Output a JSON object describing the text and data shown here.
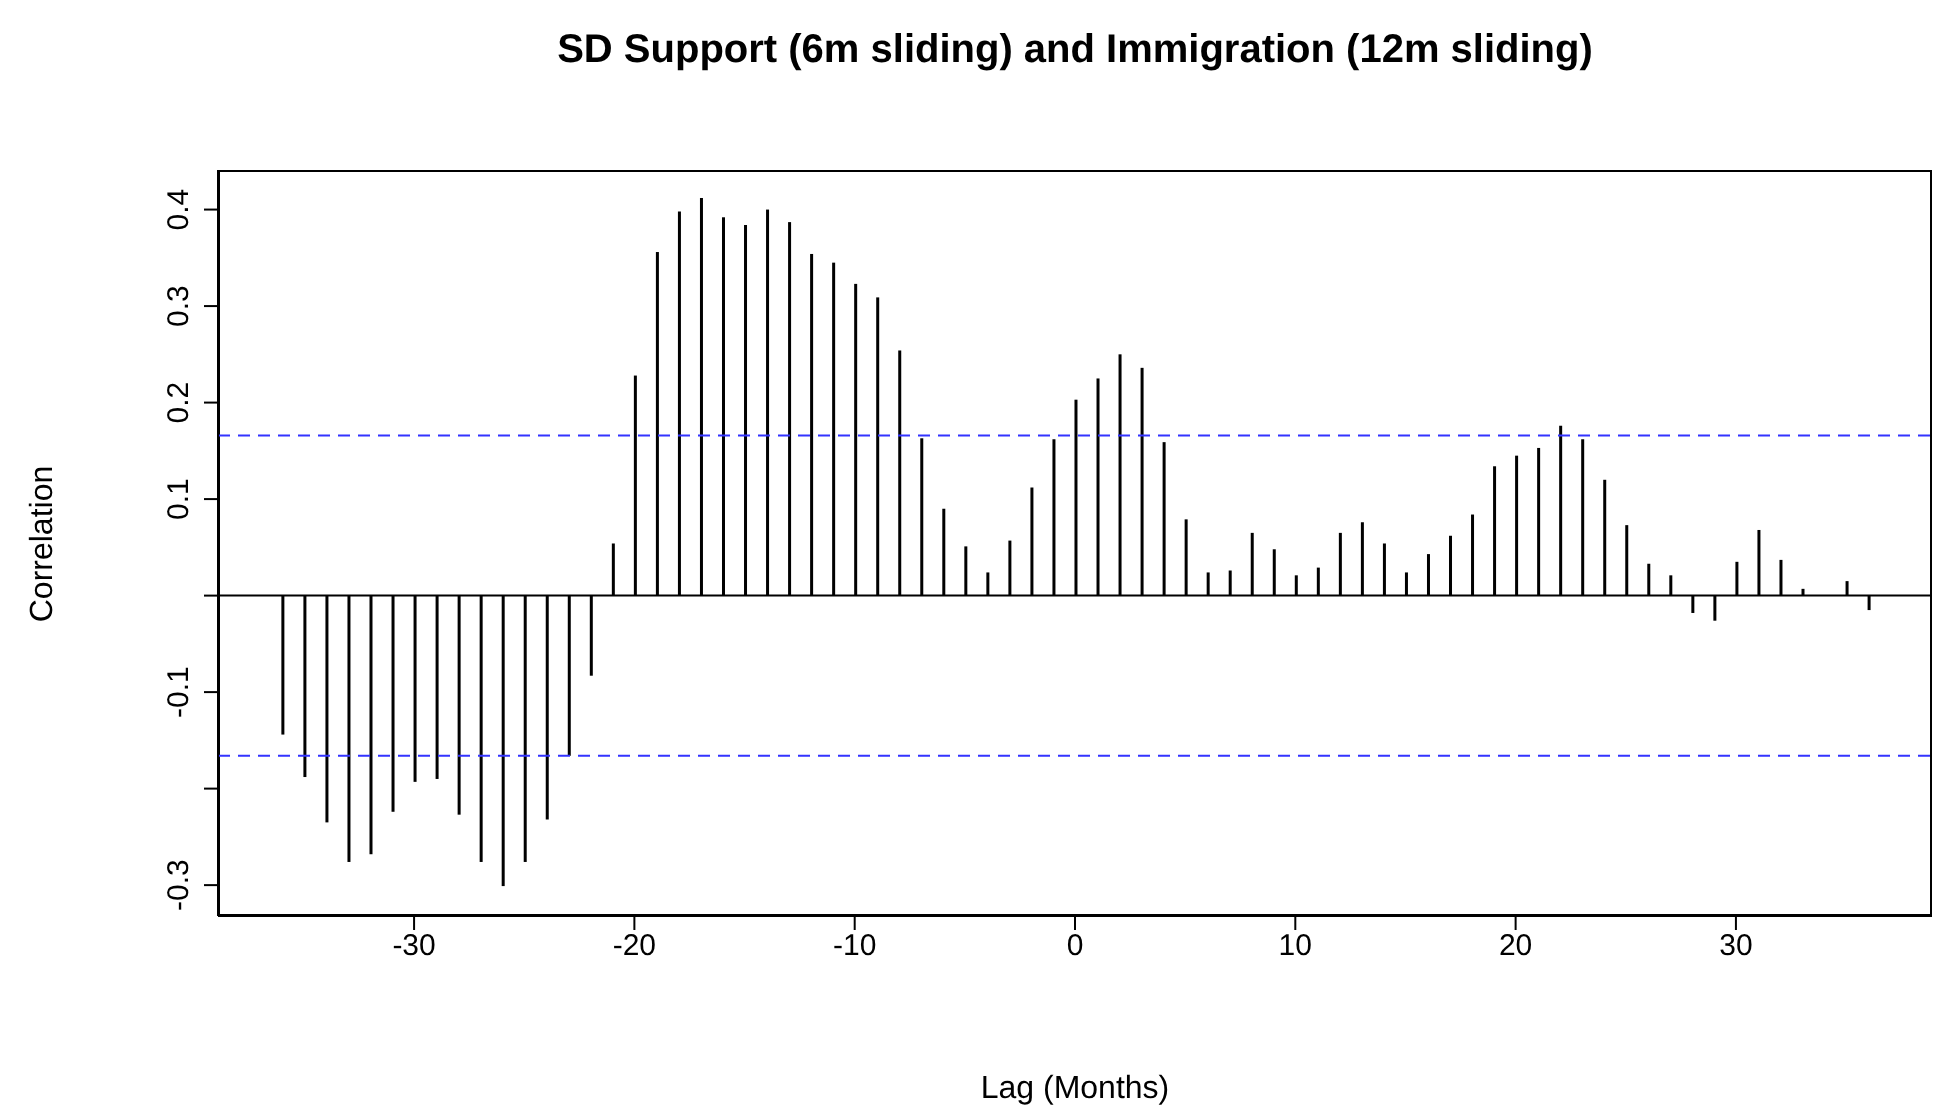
{
  "chart_data": {
    "type": "bar",
    "title": "SD Support (6m sliding) and Immigration (12m sliding)",
    "xlabel": "Lag (Months)",
    "ylabel": "Correlation",
    "x": [
      -36,
      -35,
      -34,
      -33,
      -32,
      -31,
      -30,
      -29,
      -28,
      -27,
      -26,
      -25,
      -24,
      -23,
      -22,
      -21,
      -20,
      -19,
      -18,
      -17,
      -16,
      -15,
      -14,
      -13,
      -12,
      -11,
      -10,
      -9,
      -8,
      -7,
      -6,
      -5,
      -4,
      -3,
      -2,
      -1,
      0,
      1,
      2,
      3,
      4,
      5,
      6,
      7,
      8,
      9,
      10,
      11,
      12,
      13,
      14,
      15,
      16,
      17,
      18,
      19,
      20,
      21,
      22,
      23,
      24,
      25,
      26,
      27,
      28,
      29,
      30,
      31,
      32,
      33,
      34,
      35,
      36
    ],
    "values": [
      -0.144,
      -0.188,
      -0.235,
      -0.276,
      -0.268,
      -0.224,
      -0.193,
      -0.19,
      -0.227,
      -0.276,
      -0.301,
      -0.276,
      -0.232,
      -0.166,
      -0.083,
      0.054,
      0.228,
      0.356,
      0.398,
      0.412,
      0.392,
      0.384,
      0.4,
      0.387,
      0.354,
      0.345,
      0.323,
      0.309,
      0.254,
      0.163,
      0.09,
      0.051,
      0.024,
      0.057,
      0.112,
      0.162,
      0.203,
      0.225,
      0.25,
      0.236,
      0.159,
      0.079,
      0.024,
      0.026,
      0.065,
      0.048,
      0.021,
      0.029,
      0.065,
      0.076,
      0.054,
      0.024,
      0.043,
      0.062,
      0.084,
      0.134,
      0.145,
      0.153,
      0.176,
      0.162,
      0.12,
      0.073,
      0.033,
      0.021,
      -0.018,
      -0.026,
      0.035,
      0.068,
      0.037,
      0.007,
      0,
      0.015,
      -0.015
    ],
    "color": "#000000",
    "xlim": [
      -38.9,
      38.9
    ],
    "xticks": [
      -30,
      -20,
      -10,
      0,
      10,
      20,
      30
    ],
    "ylim": [
      -0.332,
      0.441
    ],
    "yticks": [
      -0.3,
      {
        "value": -0.2,
        "label": null
      },
      -0.1,
      {
        "value": 0,
        "label": null
      },
      0.1,
      0.2,
      0.3,
      0.4
    ],
    "ref_lines": [
      {
        "axis": "y",
        "value": 0,
        "color": "#000000",
        "line_style": "solid"
      },
      {
        "axis": "y",
        "value": 0.166,
        "color": "#3333ff",
        "line_style": "dashed"
      },
      {
        "axis": "y",
        "value": -0.166,
        "color": "#3333ff",
        "line_style": "dashed"
      }
    ]
  }
}
